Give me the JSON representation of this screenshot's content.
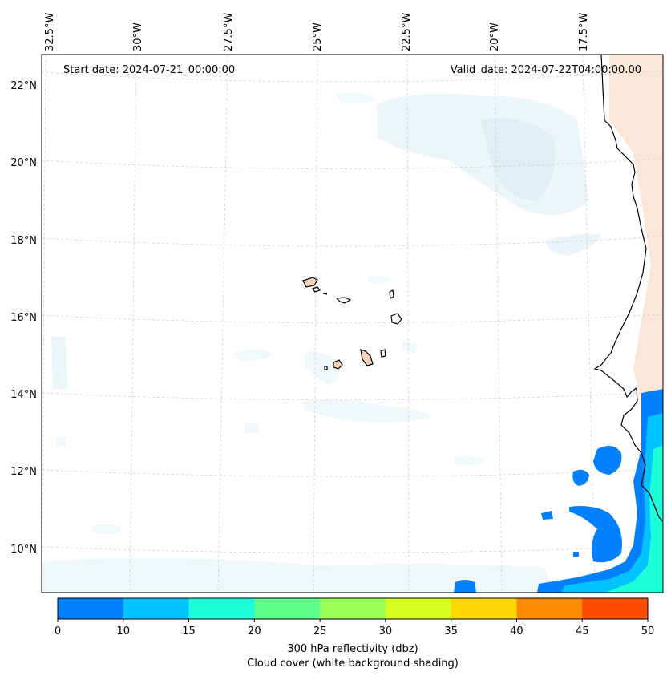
{
  "map": {
    "start_date": "Start date: 2024-07-21_00:00:00",
    "valid_date": "Valid_date: 2024-07-22T04:00:00.00",
    "lon_labels": [
      "32.5°W",
      "30°W",
      "27.5°W",
      "25°W",
      "22.5°W",
      "20°W",
      "17.5°W"
    ],
    "lat_labels": [
      "22°N",
      "20°N",
      "18°N",
      "16°N",
      "14°N",
      "12°N",
      "10°N"
    ],
    "colors": {
      "coast": "#000000",
      "grid": "#c8c8c8",
      "cloud": "#d9ecf2",
      "land_warm": "#f6d3b8"
    }
  },
  "colorbar": {
    "ticks": [
      "0",
      "10",
      "15",
      "20",
      "25",
      "30",
      "35",
      "40",
      "45",
      "50"
    ],
    "colors": [
      "#0080ff",
      "#00c4ff",
      "#1dffd8",
      "#5dff8a",
      "#98ff53",
      "#d7ff1e",
      "#ffd700",
      "#ff8c00",
      "#ff4c00"
    ],
    "label_line1": "300 hPa reflectivity (dbz)",
    "label_line2": "Cloud cover (white background shading)"
  }
}
